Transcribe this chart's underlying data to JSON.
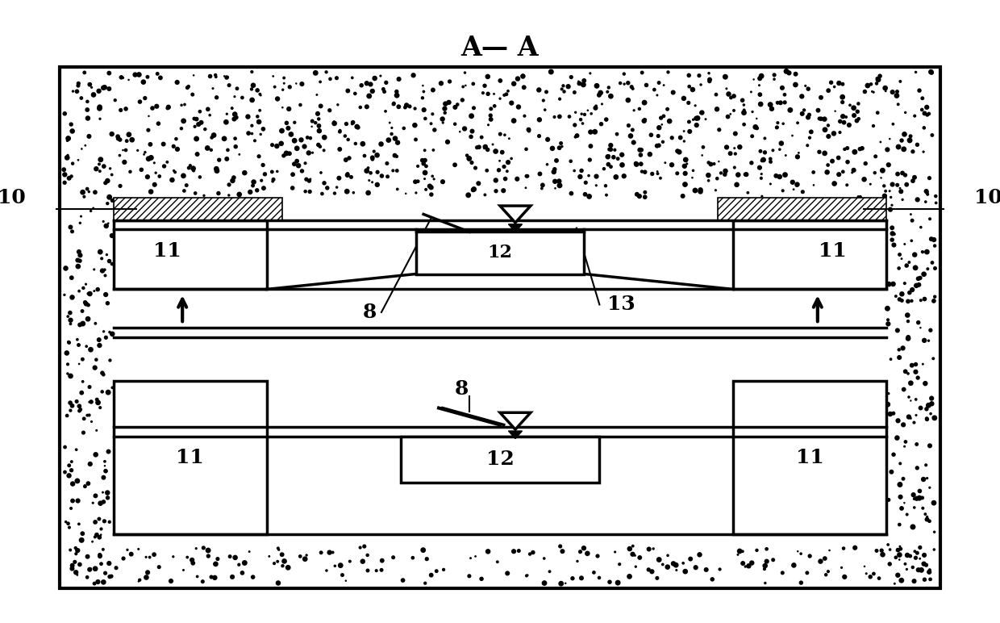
{
  "title": "A— A",
  "bg_color": "#ffffff",
  "lw": 2.5,
  "lw_thin": 1.5,
  "fs_label": 18,
  "fs_title": 24
}
